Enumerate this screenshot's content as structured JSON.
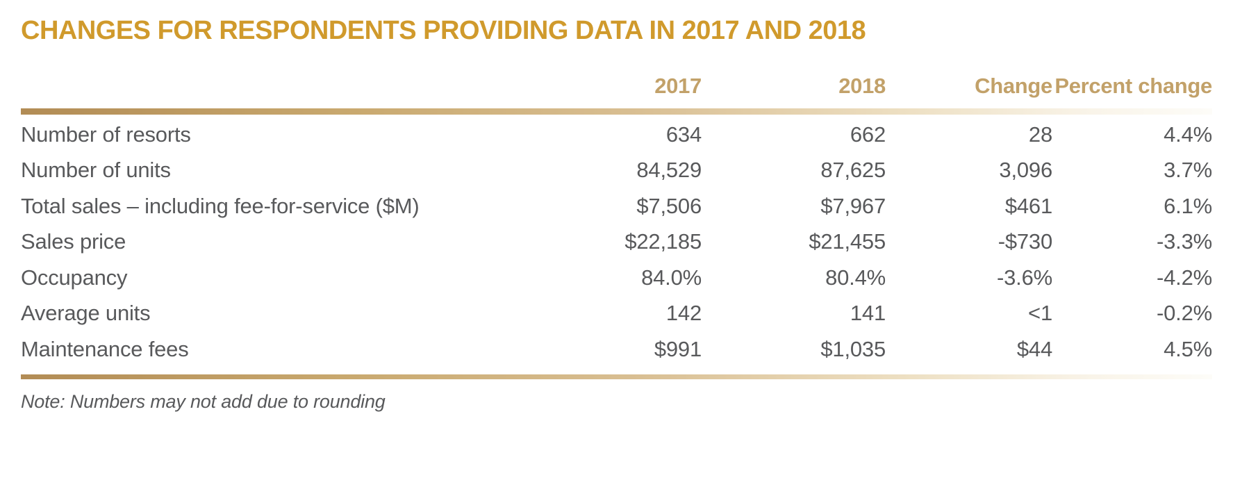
{
  "title": "CHANGES FOR RESPONDENTS PROVIDING DATA IN 2017 AND 2018",
  "chart_data": {
    "type": "table",
    "title": "CHANGES FOR RESPONDENTS PROVIDING DATA IN 2017 AND 2018",
    "columns": [
      "",
      "2017",
      "2018",
      "Change",
      "Percent change"
    ],
    "rows": [
      [
        "Number of resorts",
        "634",
        "662",
        "28",
        "4.4%"
      ],
      [
        "Number of units",
        "84,529",
        "87,625",
        "3,096",
        "3.7%"
      ],
      [
        "Total sales – including fee-for-service ($M)",
        "$7,506",
        "$7,967",
        "$461",
        "6.1%"
      ],
      [
        "Sales price",
        "$22,185",
        "$21,455",
        "-$730",
        "-3.3%"
      ],
      [
        "Occupancy",
        "84.0%",
        "80.4%",
        "-3.6%",
        "-4.2%"
      ],
      [
        "Average units",
        "142",
        "141",
        "<1",
        "-0.2%"
      ],
      [
        "Maintenance fees",
        "$991",
        "$1,035",
        "$44",
        "4.5%"
      ]
    ],
    "note": "Note: Numbers may not add due to rounding",
    "layout_hints": {
      "numeric_columns_alignment": "right",
      "grid": "off",
      "header_position": "top"
    }
  },
  "colors": {
    "title_gold": "#D09A2C",
    "header_tan": "#C2A169",
    "body_text": "#58595B",
    "rule_gradient_start": "#B28C55",
    "rule_gradient_end": "#FDFCF8",
    "background": "#FFFFFF"
  }
}
